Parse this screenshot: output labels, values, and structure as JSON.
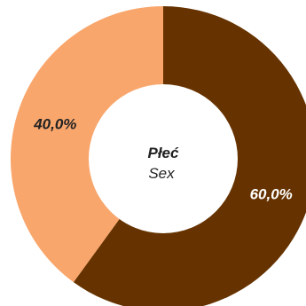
{
  "chart_data": {
    "type": "pie",
    "donut": true,
    "title": "Płeć",
    "subtitle": "Sex",
    "slices": [
      {
        "label": "60,0%",
        "value": 60.0,
        "color": "#663300",
        "label_color": "#ffffff"
      },
      {
        "label": "40,0%",
        "value": 40.0,
        "color": "#f9a66c",
        "label_color": "#222222"
      }
    ],
    "start_angle_deg": 0,
    "direction": "clockwise",
    "legend": "none"
  }
}
